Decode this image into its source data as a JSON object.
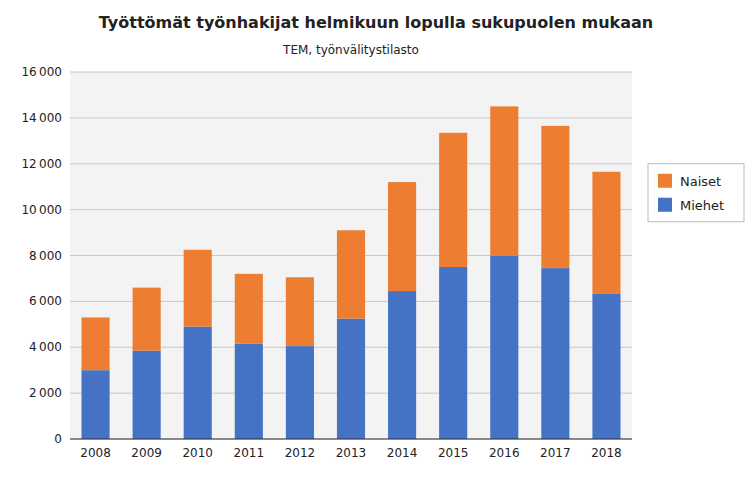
{
  "chart_data": {
    "type": "bar",
    "stacked": true,
    "title": "Työttömät työnhakijat helmikuun lopulla sukupuolen mukaan",
    "subtitle": "TEM, työnvälitystilasto",
    "categories": [
      "2008",
      "2009",
      "2010",
      "2011",
      "2012",
      "2013",
      "2014",
      "2015",
      "2016",
      "2017",
      "2018"
    ],
    "series": [
      {
        "name": "Miehet",
        "color": "#4472C4",
        "values": [
          3000,
          3850,
          4900,
          4150,
          4050,
          5250,
          6450,
          7500,
          8000,
          7450,
          6350
        ]
      },
      {
        "name": "Naiset",
        "color": "#ED7D31",
        "values": [
          2300,
          2750,
          3350,
          3050,
          3000,
          3850,
          4750,
          5850,
          6500,
          6200,
          5300
        ]
      }
    ],
    "ylim": [
      0,
      16000
    ],
    "yticks": [
      0,
      {
        "value": 2000,
        "label": "2 000"
      },
      {
        "value": 4000,
        "label": "4 000"
      },
      {
        "value": 6000,
        "label": "6 000"
      },
      {
        "value": 8000,
        "label": "8 000"
      },
      {
        "value": 10000,
        "label": "10 000"
      },
      {
        "value": 12000,
        "label": "12 000"
      },
      {
        "value": 14000,
        "label": "14 000"
      },
      {
        "value": 16000,
        "label": "16 000"
      }
    ],
    "grid": true,
    "legend": "right"
  }
}
